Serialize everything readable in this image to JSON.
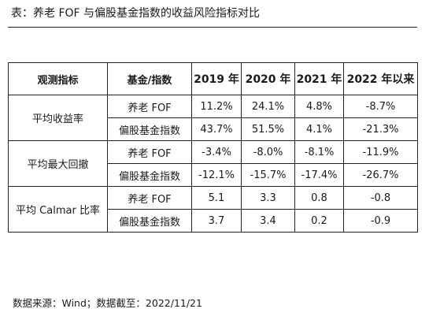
{
  "caption": "表：养老 FOF 与偏股基金指数的收益风险指标对比",
  "table": {
    "headers": {
      "metric": "观测指标",
      "fund": "基金/指数",
      "years": [
        "2019 年",
        "2020 年",
        "2021 年",
        "2022 年以来"
      ]
    },
    "groups": [
      {
        "metric": "平均收益率",
        "rows": [
          {
            "fund": "养老 FOF",
            "values": [
              "11.2%",
              "24.1%",
              "4.8%",
              "-8.7%"
            ]
          },
          {
            "fund": "偏股基金指数",
            "values": [
              "43.7%",
              "51.5%",
              "4.1%",
              "-21.3%"
            ]
          }
        ]
      },
      {
        "metric": "平均最大回撤",
        "rows": [
          {
            "fund": "养老 FOF",
            "values": [
              "-3.4%",
              "-8.0%",
              "-8.1%",
              "-11.9%"
            ]
          },
          {
            "fund": "偏股基金指数",
            "values": [
              "-12.1%",
              "-15.7%",
              "-17.4%",
              "-26.7%"
            ]
          }
        ]
      },
      {
        "metric": "平均 Calmar 比率",
        "rows": [
          {
            "fund": "养老 FOF",
            "values": [
              "5.1",
              "3.3",
              "0.8",
              "-0.8"
            ]
          },
          {
            "fund": "偏股基金指数",
            "values": [
              "3.7",
              "3.4",
              "0.2",
              "-0.9"
            ]
          }
        ]
      }
    ]
  },
  "source": "数据来源：Wind；数据截至：2022/11/21"
}
